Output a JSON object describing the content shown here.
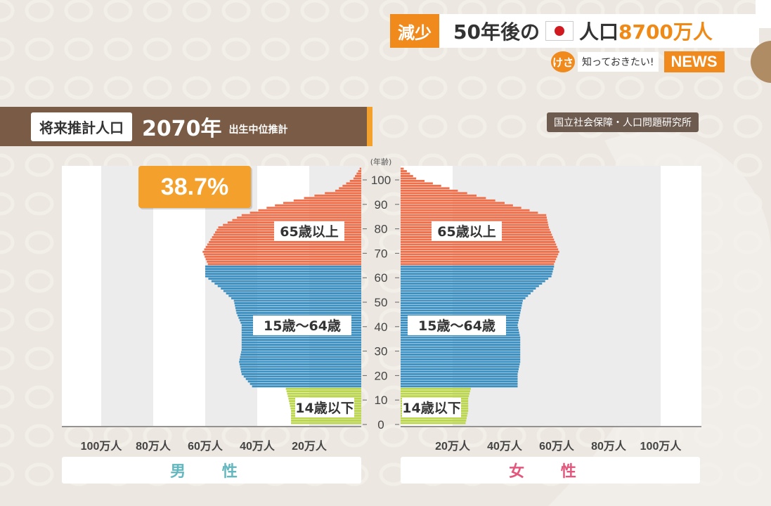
{
  "banner": {
    "decrease_badge": "減少",
    "headline_prefix": "50年後の",
    "headline_mid": "人口",
    "headline_value": "8700万人",
    "kesa_badge": "けさ",
    "know_label": "知っておきたい!",
    "news_badge": "NEWS"
  },
  "header": {
    "label": "将来推計人口",
    "year": "2070年",
    "sub": "出生中位推計"
  },
  "source": "国立社会保障・人口問題研究所",
  "callout": "38.7%",
  "chart_data": {
    "type": "bar",
    "orientation": "population-pyramid",
    "y_axis_unit": "(年齢)",
    "y_ticks": [
      "0",
      "10",
      "20",
      "30",
      "40",
      "50",
      "60",
      "70",
      "80",
      "90",
      "100"
    ],
    "y_range": [
      0,
      105
    ],
    "x_range": [
      0,
      100
    ],
    "x_tick_labels_male": [
      "100万人",
      "80万人",
      "60万人",
      "40万人",
      "20万人"
    ],
    "x_tick_labels_female": [
      "20万人",
      "40万人",
      "60万人",
      "80万人",
      "100万人"
    ],
    "legend_male": "男 性",
    "legend_female": "女 性",
    "group_labels": {
      "old": "65歳以上",
      "working": "15歳〜64歳",
      "young": "14歳以下"
    },
    "colors": {
      "old": "#ef6f4a",
      "working": "#3a8fc0",
      "young": "#bcd64b"
    },
    "group_bounds": {
      "young": [
        0,
        14
      ],
      "working": [
        15,
        64
      ],
      "old": [
        65,
        105
      ]
    },
    "male": [
      [
        0,
        27
      ],
      [
        5,
        27
      ],
      [
        10,
        28
      ],
      [
        14,
        29
      ],
      [
        15,
        42
      ],
      [
        20,
        46
      ],
      [
        25,
        47
      ],
      [
        30,
        46
      ],
      [
        35,
        46
      ],
      [
        40,
        46
      ],
      [
        45,
        48
      ],
      [
        50,
        49
      ],
      [
        55,
        54
      ],
      [
        60,
        60
      ],
      [
        64,
        60
      ],
      [
        65,
        59
      ],
      [
        70,
        61
      ],
      [
        75,
        58
      ],
      [
        80,
        55
      ],
      [
        85,
        46
      ],
      [
        90,
        30
      ],
      [
        95,
        10
      ],
      [
        100,
        3
      ],
      [
        105,
        0
      ]
    ],
    "female": [
      [
        0,
        25
      ],
      [
        5,
        26
      ],
      [
        10,
        26
      ],
      [
        14,
        27
      ],
      [
        15,
        45
      ],
      [
        20,
        45
      ],
      [
        25,
        46
      ],
      [
        30,
        46
      ],
      [
        35,
        46
      ],
      [
        40,
        45
      ],
      [
        45,
        46
      ],
      [
        50,
        47
      ],
      [
        55,
        52
      ],
      [
        60,
        58
      ],
      [
        64,
        59
      ],
      [
        65,
        59
      ],
      [
        70,
        61
      ],
      [
        75,
        59
      ],
      [
        80,
        57
      ],
      [
        85,
        56
      ],
      [
        90,
        40
      ],
      [
        95,
        22
      ],
      [
        100,
        6
      ],
      [
        105,
        0
      ]
    ]
  }
}
